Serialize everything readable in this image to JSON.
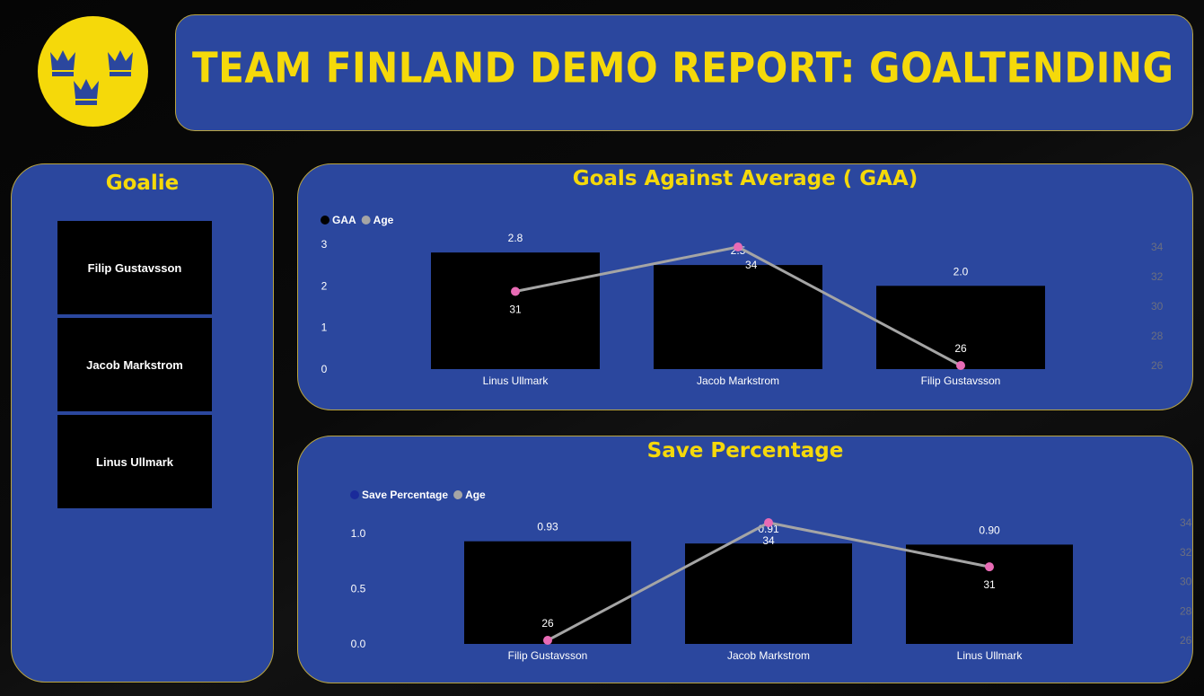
{
  "header": {
    "title": "TEAM FINLAND DEMO REPORT: GOALTENDING"
  },
  "logo": {
    "icon": "three-crowns-icon",
    "bg_color": "#f5d90a",
    "crown_color": "#2b479e"
  },
  "colors": {
    "panel": "#2b479e",
    "border": "#b9a440",
    "title": "#f5d90a",
    "bar": "#000000",
    "line": "#a5a5a5",
    "marker": "#e86bb5"
  },
  "goalie_slicer": {
    "title": "Goalie",
    "items": [
      "Filip Gustavsson",
      "Jacob Markstrom",
      "Linus Ullmark"
    ]
  },
  "chart_data": [
    {
      "type": "bar",
      "title": "Goals Against Average ( GAA)",
      "legend": {
        "placement": "top-left",
        "entries": [
          {
            "name": "GAA",
            "color": "#000000"
          },
          {
            "name": "Age",
            "color": "#a5a5a5"
          }
        ]
      },
      "categories": [
        "Linus Ullmark",
        "Jacob Markstrom",
        "Filip Gustavsson"
      ],
      "series": [
        {
          "name": "GAA",
          "kind": "bar",
          "values": [
            2.8,
            2.5,
            2.0
          ],
          "labels": [
            "2.8",
            "2.5",
            "2.0"
          ]
        },
        {
          "name": "Age",
          "kind": "line",
          "axis": "secondary",
          "values": [
            31,
            34,
            26
          ]
        }
      ],
      "y_ticks": [
        "0",
        "1",
        "2",
        "3"
      ],
      "ylim": [
        0,
        3.3
      ],
      "y2_ticks": [
        "26",
        "28",
        "30",
        "32",
        "34"
      ],
      "y2lim": [
        26,
        34
      ],
      "grid": false
    },
    {
      "type": "bar",
      "title": "Save Percentage",
      "legend": {
        "placement": "top-left",
        "entries": [
          {
            "name": "Save Percentage",
            "color": "#1a2a9a"
          },
          {
            "name": "Age",
            "color": "#a5a5a5"
          }
        ]
      },
      "categories": [
        "Filip Gustavsson",
        "Jacob Markstrom",
        "Linus Ullmark"
      ],
      "series": [
        {
          "name": "Save Percentage",
          "kind": "bar",
          "values": [
            0.93,
            0.91,
            0.9
          ],
          "labels": [
            "0.93",
            "0.91",
            "0.90"
          ]
        },
        {
          "name": "Age",
          "kind": "line",
          "axis": "secondary",
          "values": [
            26,
            34,
            31
          ]
        }
      ],
      "y_ticks": [
        "0.0",
        "0.5",
        "1.0"
      ],
      "ylim": [
        0,
        1.05
      ],
      "y2_ticks": [
        "26",
        "28",
        "30",
        "32",
        "34"
      ],
      "y2lim": [
        26,
        34
      ],
      "grid": false
    }
  ]
}
